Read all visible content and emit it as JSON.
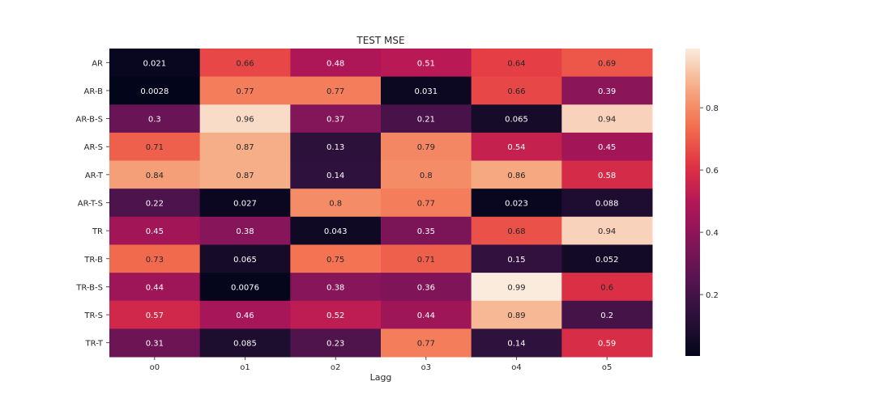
{
  "chart_data": {
    "type": "heatmap",
    "title": "TEST MSE",
    "xlabel": "Lagg",
    "ylabel": "",
    "x_categories": [
      "o0",
      "o1",
      "o2",
      "o3",
      "o4",
      "o5"
    ],
    "y_categories": [
      "AR",
      "AR-B",
      "AR-B-S",
      "AR-S",
      "AR-T",
      "AR-T-S",
      "TR",
      "TR-B",
      "TR-B-S",
      "TR-S",
      "TR-T"
    ],
    "values": [
      [
        0.021,
        0.66,
        0.48,
        0.51,
        0.64,
        0.69
      ],
      [
        0.0028,
        0.77,
        0.77,
        0.031,
        0.66,
        0.39
      ],
      [
        0.3,
        0.96,
        0.37,
        0.21,
        0.065,
        0.94
      ],
      [
        0.71,
        0.87,
        0.13,
        0.79,
        0.54,
        0.45
      ],
      [
        0.84,
        0.87,
        0.14,
        0.8,
        0.86,
        0.58
      ],
      [
        0.22,
        0.027,
        0.8,
        0.77,
        0.023,
        0.088
      ],
      [
        0.45,
        0.38,
        0.043,
        0.35,
        0.68,
        0.94
      ],
      [
        0.73,
        0.065,
        0.75,
        0.71,
        0.15,
        0.052
      ],
      [
        0.44,
        0.0076,
        0.38,
        0.36,
        0.99,
        0.6
      ],
      [
        0.57,
        0.46,
        0.52,
        0.44,
        0.89,
        0.2
      ],
      [
        0.31,
        0.085,
        0.23,
        0.77,
        0.14,
        0.59
      ]
    ],
    "value_labels": [
      [
        "0.021",
        "0.66",
        "0.48",
        "0.51",
        "0.64",
        "0.69"
      ],
      [
        "0.0028",
        "0.77",
        "0.77",
        "0.031",
        "0.66",
        "0.39"
      ],
      [
        "0.3",
        "0.96",
        "0.37",
        "0.21",
        "0.065",
        "0.94"
      ],
      [
        "0.71",
        "0.87",
        "0.13",
        "0.79",
        "0.54",
        "0.45"
      ],
      [
        "0.84",
        "0.87",
        "0.14",
        "0.8",
        "0.86",
        "0.58"
      ],
      [
        "0.22",
        "0.027",
        "0.8",
        "0.77",
        "0.023",
        "0.088"
      ],
      [
        "0.45",
        "0.38",
        "0.043",
        "0.35",
        "0.68",
        "0.94"
      ],
      [
        "0.73",
        "0.065",
        "0.75",
        "0.71",
        "0.15",
        "0.052"
      ],
      [
        "0.44",
        "0.0076",
        "0.38",
        "0.36",
        "0.99",
        "0.6"
      ],
      [
        "0.57",
        "0.46",
        "0.52",
        "0.44",
        "0.89",
        "0.2"
      ],
      [
        "0.31",
        "0.085",
        "0.23",
        "0.77",
        "0.14",
        "0.59"
      ]
    ],
    "colormap": "rocket",
    "colorbar": {
      "vmin": 0.0028,
      "vmax": 0.99,
      "ticks": [
        0.2,
        0.4,
        0.6,
        0.8
      ],
      "tick_labels": [
        "0.2",
        "0.4",
        "0.6",
        "0.8"
      ]
    },
    "annotation_colors": {
      "dark_cells": "#ffffff",
      "light_cells": "#262626"
    }
  }
}
